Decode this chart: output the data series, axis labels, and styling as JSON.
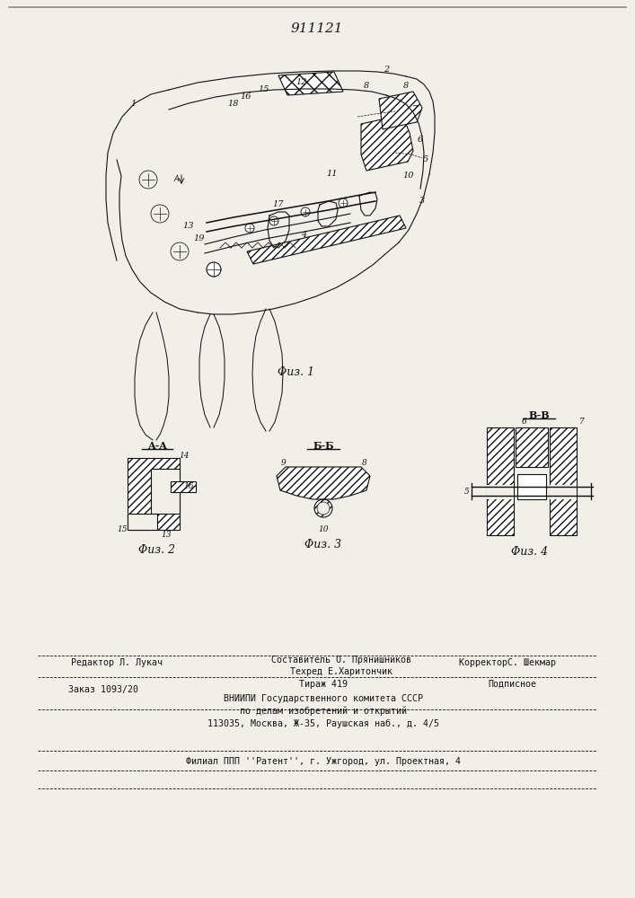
{
  "patent_number": "911121",
  "fig1_caption": "Φиз. 1",
  "fig2_caption": "Φиз. 2",
  "fig3_caption": "Φиз. 3",
  "fig4_caption": "Φиз. 4",
  "fig2_label": "A-A",
  "fig3_label": "Б-Б",
  "fig4_label": "B-B",
  "footer_line1_left": "Редактор Л. Лукач",
  "footer_line1_mid": "Составитель О. Прянишников",
  "footer_line1_right": "КорректорС. Шекмар",
  "footer_line2_mid": "Техред Е.Харитончик",
  "footer_line3_left": "Заказ 1093/20",
  "footer_line3_mid": "Тираж 419",
  "footer_line3_right": "Подписное",
  "footer_line4": "ВНИИПИ Государственного комитета СССР",
  "footer_line5": "по делам изобретений и открытий",
  "footer_line6": "113035, Москва, Ж-35, Раушская наб., д. 4/5",
  "footer_line7": "Филиал ППП ''Pатент'', г. Ужгород, ул. Проектная, 4",
  "bg_color": "#f2efe9",
  "line_color": "#1a1a1a"
}
